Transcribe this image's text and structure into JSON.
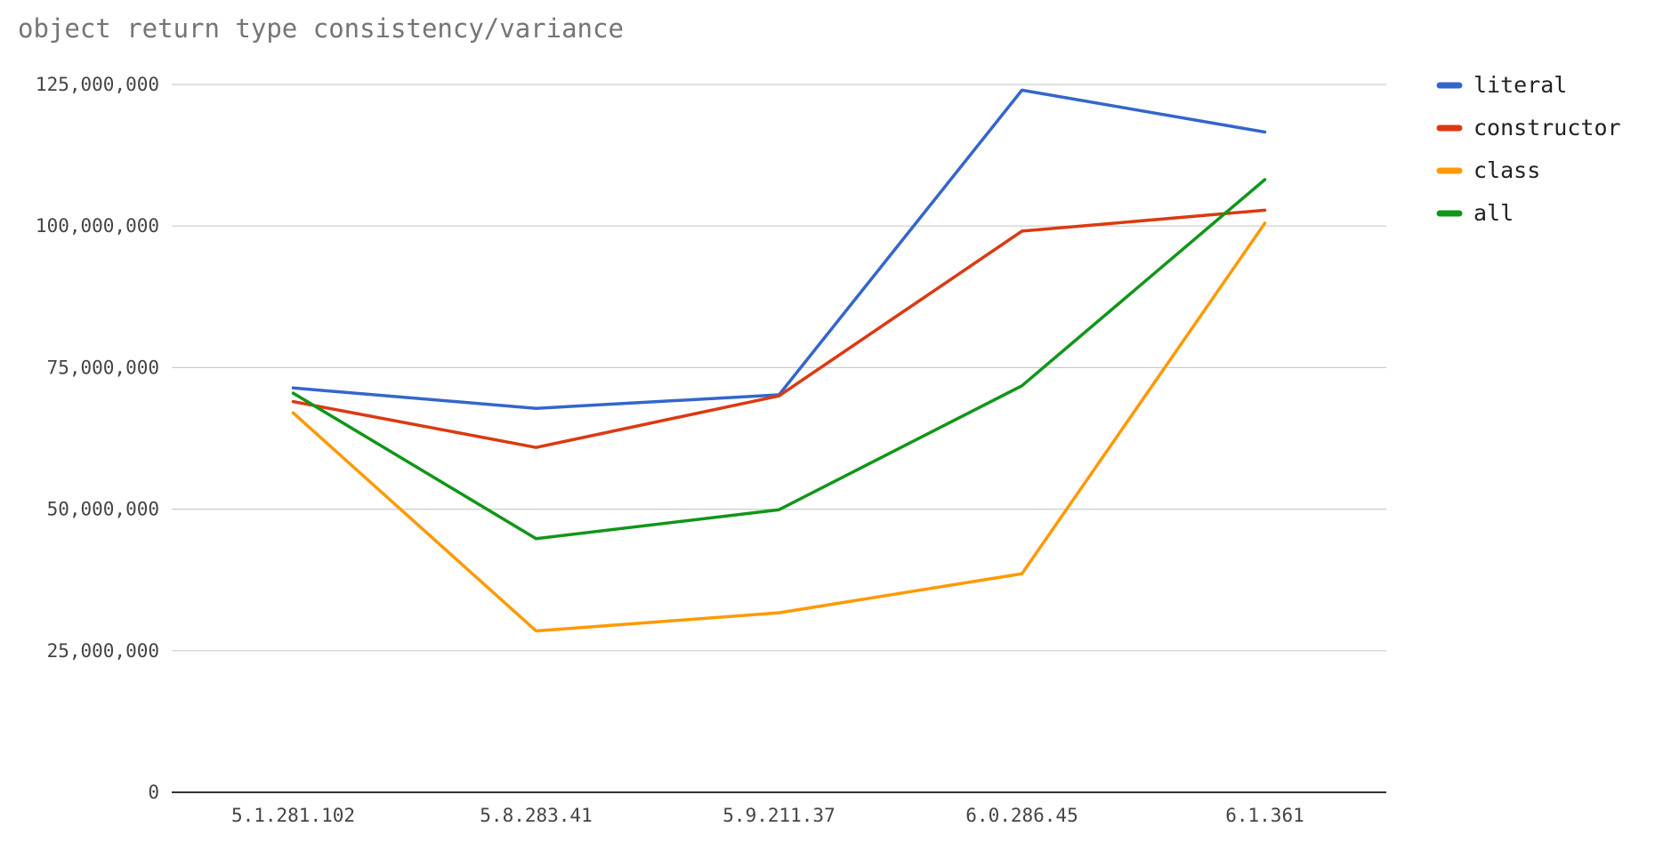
{
  "chart_data": {
    "type": "line",
    "title": "object return type consistency/variance",
    "categories": [
      "5.1.281.102",
      "5.8.283.41",
      "5.9.211.37",
      "6.0.286.45",
      "6.1.361"
    ],
    "ylim": [
      0,
      125000000
    ],
    "yticks": [
      0,
      25000000,
      50000000,
      75000000,
      100000000,
      125000000
    ],
    "ytick_labels": [
      "0",
      "25,000,000",
      "50,000,000",
      "75,000,000",
      "100,000,000",
      "125,000,000"
    ],
    "grid": true,
    "legend_position": "right",
    "series": [
      {
        "name": "literal",
        "color": "#3366cc",
        "values": [
          71400000,
          67800000,
          70200000,
          124000000,
          116600000
        ]
      },
      {
        "name": "constructor",
        "color": "#dc3912",
        "values": [
          69000000,
          60900000,
          70000000,
          99100000,
          102800000
        ]
      },
      {
        "name": "class",
        "color": "#ff9900",
        "values": [
          67000000,
          28500000,
          31700000,
          38600000,
          100500000
        ]
      },
      {
        "name": "all",
        "color": "#109618",
        "values": [
          70500000,
          44800000,
          49900000,
          71800000,
          108200000
        ]
      }
    ]
  }
}
